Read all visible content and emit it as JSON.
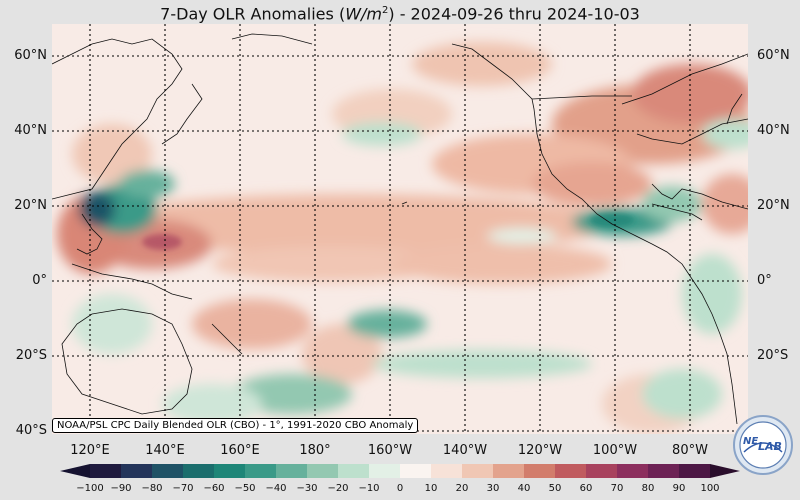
{
  "title": {
    "prefix": "7-Day OLR Anomalies (",
    "unit_main": "W/m",
    "unit_exp": "2",
    "suffix": ") - 2024-09-26 thru 2024-10-03"
  },
  "credit": "NOAA/PSL CPC Daily Blended OLR (CBO) - 1°, 1991-2020 CBO Anomaly",
  "lat_labels": [
    "60°N",
    "40°N",
    "20°N",
    "0°",
    "20°S",
    "40°S"
  ],
  "lon_labels": [
    "120°E",
    "140°E",
    "160°E",
    "180°",
    "160°W",
    "140°W",
    "120°W",
    "100°W",
    "80°W"
  ],
  "colorbar": {
    "ticks": [
      "−100",
      "−90",
      "−80",
      "−70",
      "−60",
      "−50",
      "−40",
      "−30",
      "−20",
      "−10",
      "0",
      "10",
      "20",
      "30",
      "40",
      "50",
      "60",
      "70",
      "80",
      "90",
      "100"
    ],
    "colors": [
      "#1f1a3e",
      "#23345a",
      "#1f5266",
      "#1b6e6d",
      "#1e8678",
      "#3a9a88",
      "#66b19c",
      "#93c8b1",
      "#bde0cd",
      "#e3f0e6",
      "#faf4f0",
      "#f7e2d8",
      "#f0c7b4",
      "#e3a38d",
      "#d27d6c",
      "#c05b5f",
      "#a8425e",
      "#8c2f5e",
      "#6d2255",
      "#4d1745"
    ]
  },
  "logo": {
    "line1": "NE",
    "line2": "LAB"
  }
}
